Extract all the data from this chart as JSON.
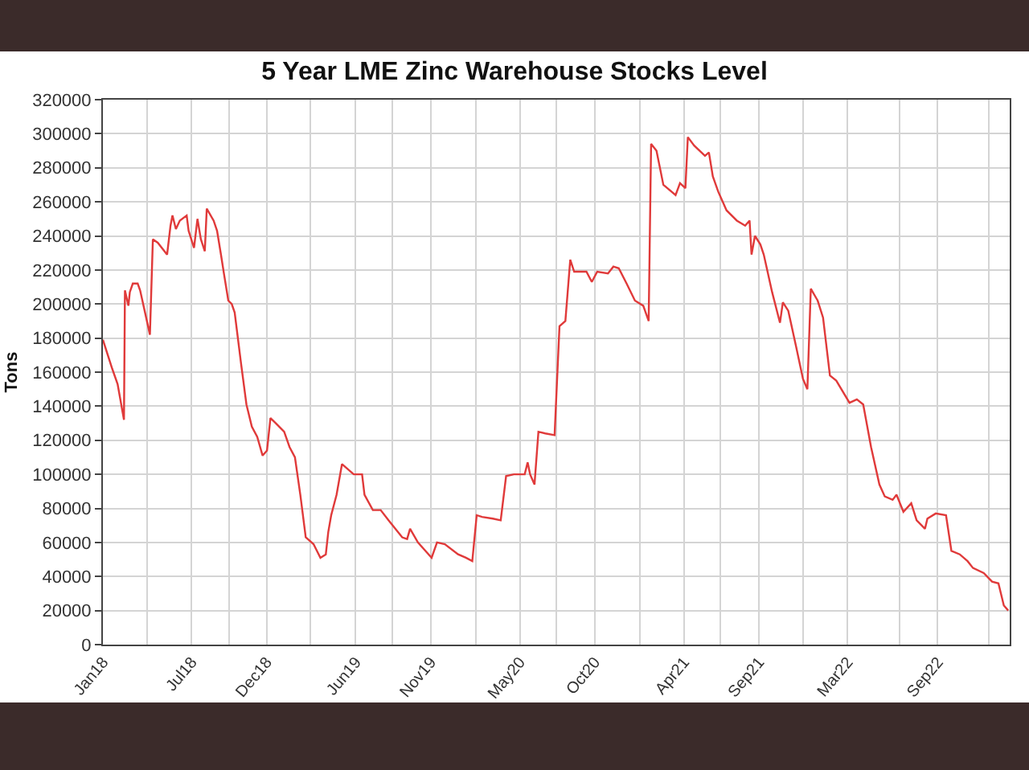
{
  "chart_data": {
    "type": "line",
    "title": "5 Year LME Zinc Warehouse Stocks Level",
    "ylabel": "Tons",
    "x": [
      "2018-01-01",
      "2018-01-20",
      "2018-01-31",
      "2018-02-13",
      "2018-02-15",
      "2018-02-22",
      "2018-02-25",
      "2018-03-03",
      "2018-03-13",
      "2018-03-18",
      "2018-04-07",
      "2018-04-13",
      "2018-04-23",
      "2018-05-12",
      "2018-05-19",
      "2018-05-23",
      "2018-05-30",
      "2018-06-07",
      "2018-06-21",
      "2018-06-25",
      "2018-07-06",
      "2018-07-13",
      "2018-07-20",
      "2018-07-28",
      "2018-08-01",
      "2018-08-15",
      "2018-08-22",
      "2018-08-30",
      "2018-09-05",
      "2018-09-14",
      "2018-09-21",
      "2018-09-27",
      "2018-10-10",
      "2018-10-21",
      "2018-11-01",
      "2018-11-12",
      "2018-11-23",
      "2018-12-02",
      "2018-12-09",
      "2018-12-20",
      "2019-01-06",
      "2019-01-17",
      "2019-01-28",
      "2019-02-08",
      "2019-02-19",
      "2019-03-07",
      "2019-03-21",
      "2019-04-01",
      "2019-04-06",
      "2019-04-12",
      "2019-04-23",
      "2019-05-04",
      "2019-05-28",
      "2019-06-14",
      "2019-06-19",
      "2019-07-06",
      "2019-07-22",
      "2019-08-07",
      "2019-09-04",
      "2019-09-14",
      "2019-09-20",
      "2019-10-06",
      "2019-11-03",
      "2019-11-14",
      "2019-11-30",
      "2019-12-27",
      "2020-01-12",
      "2020-01-25",
      "2020-02-03",
      "2020-02-14",
      "2020-03-07",
      "2020-03-23",
      "2020-04-03",
      "2020-04-19",
      "2020-05-11",
      "2020-05-17",
      "2020-05-22",
      "2020-05-31",
      "2020-06-08",
      "2020-06-22",
      "2020-07-11",
      "2020-07-21",
      "2020-08-02",
      "2020-08-12",
      "2020-08-20",
      "2020-09-14",
      "2020-09-25",
      "2020-10-06",
      "2020-10-28",
      "2020-11-08",
      "2020-11-19",
      "2020-12-05",
      "2020-12-22",
      "2021-01-08",
      "2021-01-19",
      "2021-01-24",
      "2021-02-04",
      "2021-02-18",
      "2021-03-15",
      "2021-03-24",
      "2021-04-04",
      "2021-04-09",
      "2021-04-22",
      "2021-05-14",
      "2021-05-22",
      "2021-05-30",
      "2021-06-10",
      "2021-06-27",
      "2021-07-18",
      "2021-08-04",
      "2021-08-13",
      "2021-08-17",
      "2021-08-24",
      "2021-09-04",
      "2021-09-11",
      "2021-09-28",
      "2021-10-14",
      "2021-10-20",
      "2021-10-31",
      "2021-11-16",
      "2021-11-30",
      "2021-12-09",
      "2021-12-16",
      "2021-12-30",
      "2022-01-10",
      "2022-01-24",
      "2022-02-06",
      "2022-03-05",
      "2022-03-20",
      "2022-04-02",
      "2022-04-18",
      "2022-05-05",
      "2022-05-16",
      "2022-06-01",
      "2022-06-09",
      "2022-06-23",
      "2022-07-09",
      "2022-07-20",
      "2022-08-06",
      "2022-08-11",
      "2022-08-28",
      "2022-09-18",
      "2022-09-29",
      "2022-10-16",
      "2022-11-01",
      "2022-11-12",
      "2022-12-04",
      "2022-12-21",
      "2023-01-03",
      "2023-01-14",
      "2023-01-23"
    ],
    "series": [
      {
        "color": "#e03a3a",
        "values": [
          179000,
          162000,
          153000,
          132000,
          208000,
          199000,
          207000,
          212000,
          212000,
          208000,
          182000,
          238000,
          236000,
          229000,
          246000,
          252000,
          244000,
          249000,
          252000,
          243000,
          233000,
          250000,
          238000,
          231000,
          256000,
          249000,
          243000,
          229000,
          218000,
          202000,
          200000,
          195000,
          165000,
          141000,
          128000,
          122000,
          111000,
          114000,
          133000,
          130000,
          125000,
          116000,
          110000,
          88000,
          63000,
          59000,
          51000,
          53000,
          66000,
          76000,
          88000,
          106000,
          100000,
          100000,
          88000,
          79000,
          79000,
          73000,
          63000,
          62000,
          68000,
          60000,
          51000,
          60000,
          59000,
          53000,
          51000,
          49000,
          76000,
          75000,
          74000,
          73000,
          99000,
          100000,
          100000,
          107000,
          100000,
          94000,
          125000,
          124000,
          123000,
          187000,
          190000,
          226000,
          219000,
          219000,
          213000,
          219000,
          218000,
          222000,
          221000,
          212000,
          202000,
          199000,
          190000,
          294000,
          290000,
          270000,
          264000,
          271000,
          268000,
          298000,
          293000,
          287000,
          289000,
          275000,
          266000,
          255000,
          249000,
          246000,
          249000,
          229000,
          240000,
          235000,
          229000,
          207000,
          189000,
          201000,
          196000,
          175000,
          156000,
          150000,
          209000,
          202000,
          192000,
          158000,
          155000,
          142000,
          144000,
          141000,
          116000,
          94000,
          87000,
          85000,
          88000,
          78000,
          83000,
          73000,
          68000,
          74000,
          77000,
          76000,
          55000,
          53000,
          49000,
          45000,
          42000,
          37000,
          36000,
          23000,
          20000
        ]
      }
    ],
    "xlim": [
      "2018-01-01",
      "2023-01-26"
    ],
    "xticks": [
      {
        "value": "2018-01-01",
        "label": "Jan18"
      },
      {
        "value": "2018-04-01",
        "label": null
      },
      {
        "value": "2018-07-01",
        "label": "Jul18"
      },
      {
        "value": "2018-09-15",
        "label": null
      },
      {
        "value": "2018-12-01",
        "label": "Dec18"
      },
      {
        "value": "2019-03-01",
        "label": null
      },
      {
        "value": "2019-06-01",
        "label": "Jun19"
      },
      {
        "value": "2019-08-15",
        "label": null
      },
      {
        "value": "2019-11-01",
        "label": "Nov19"
      },
      {
        "value": "2020-02-01",
        "label": null
      },
      {
        "value": "2020-05-01",
        "label": "May20"
      },
      {
        "value": "2020-07-15",
        "label": null
      },
      {
        "value": "2020-10-01",
        "label": "Oct20"
      },
      {
        "value": "2021-01-01",
        "label": null
      },
      {
        "value": "2021-04-01",
        "label": "Apr21"
      },
      {
        "value": "2021-06-15",
        "label": null
      },
      {
        "value": "2021-09-01",
        "label": "Sep21"
      },
      {
        "value": "2021-12-01",
        "label": null
      },
      {
        "value": "2022-03-01",
        "label": "Mar22"
      },
      {
        "value": "2022-06-15",
        "label": null
      },
      {
        "value": "2022-09-01",
        "label": "Sep22"
      },
      {
        "value": "2022-12-15",
        "label": null
      }
    ],
    "ylim": [
      0,
      320000
    ],
    "yticks": [
      0,
      20000,
      40000,
      60000,
      80000,
      100000,
      120000,
      140000,
      160000,
      180000,
      200000,
      220000,
      240000,
      260000,
      280000,
      300000,
      320000
    ],
    "grid": true,
    "marker": "none",
    "line_style": "solid"
  }
}
